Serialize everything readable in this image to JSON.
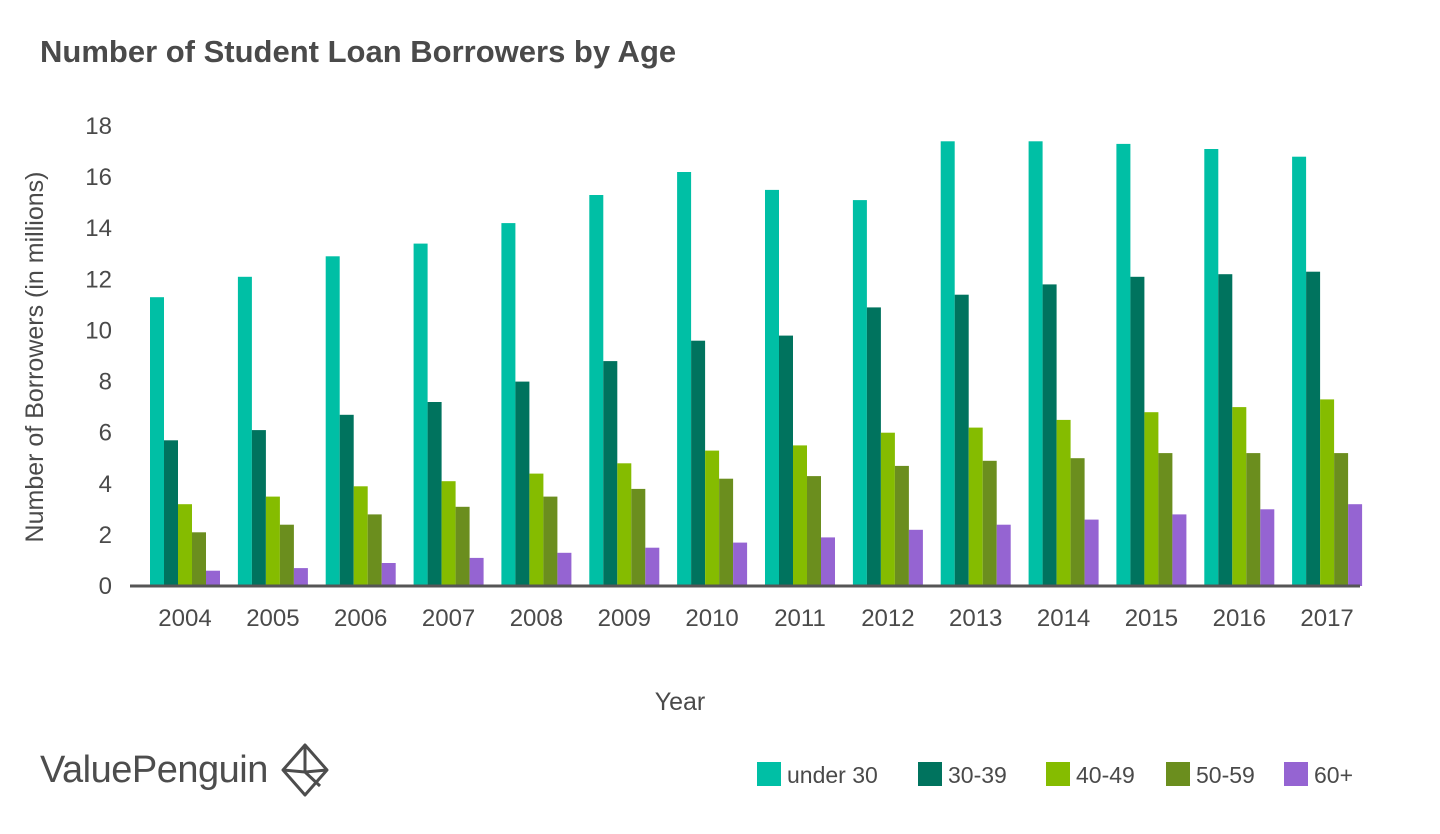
{
  "brand": {
    "name": "ValuePenguin",
    "icon": "penguin-diamond-logo-icon"
  },
  "chart_data": {
    "type": "bar",
    "title": "Number of Student Loan Borrowers by Age",
    "xlabel": "Year",
    "ylabel": "Number of Borrowers (in millions)",
    "ylim": [
      0,
      18
    ],
    "yticks": [
      "0",
      "2",
      "4",
      "6",
      "8",
      "10",
      "12",
      "14",
      "16",
      "18"
    ],
    "grid": false,
    "legend_position": "bottom-right",
    "categories": [
      "2004",
      "2005",
      "2006",
      "2007",
      "2008",
      "2009",
      "2010",
      "2011",
      "2012",
      "2013",
      "2014",
      "2015",
      "2016",
      "2017"
    ],
    "series": [
      {
        "name": "under 30",
        "color": "#00bfa5",
        "values": [
          11.3,
          12.1,
          12.9,
          13.4,
          14.2,
          15.3,
          16.2,
          15.5,
          15.1,
          17.4,
          17.4,
          17.3,
          17.1,
          16.8
        ]
      },
      {
        "name": "30-39",
        "color": "#00735e",
        "values": [
          5.7,
          6.1,
          6.7,
          7.2,
          8.0,
          8.8,
          9.6,
          9.8,
          10.9,
          11.4,
          11.8,
          12.1,
          12.2,
          12.3
        ]
      },
      {
        "name": "40-49",
        "color": "#85bc00",
        "values": [
          3.2,
          3.5,
          3.9,
          4.1,
          4.4,
          4.8,
          5.3,
          5.5,
          6.0,
          6.2,
          6.5,
          6.8,
          7.0,
          7.3
        ]
      },
      {
        "name": "50-59",
        "color": "#6b8e1e",
        "values": [
          2.1,
          2.4,
          2.8,
          3.1,
          3.5,
          3.8,
          4.2,
          4.3,
          4.7,
          4.9,
          5.0,
          5.2,
          5.2,
          5.2
        ]
      },
      {
        "name": "60+",
        "color": "#9564d2",
        "values": [
          0.6,
          0.7,
          0.9,
          1.1,
          1.3,
          1.5,
          1.7,
          1.9,
          2.2,
          2.4,
          2.6,
          2.8,
          3.0,
          3.2
        ]
      }
    ]
  }
}
